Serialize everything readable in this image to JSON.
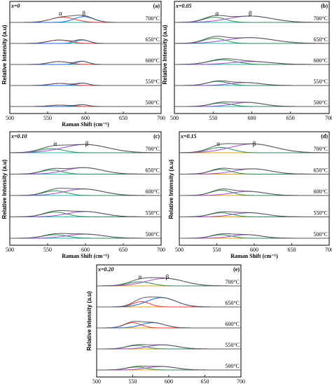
{
  "chart_data": [
    {
      "type": "line",
      "panel_letter": "(a)",
      "x_label": "x=0",
      "xlabel": "Raman Shift (cm⁻¹)",
      "ylabel": "Relative Intensity (a.u)",
      "xlim": [
        500,
        700
      ],
      "xticks": [
        "500",
        "550",
        "600",
        "650",
        "700"
      ],
      "phase_labels": [
        {
          "text": "α",
          "x": 567
        },
        {
          "text": "β",
          "x": 598
        }
      ],
      "baseline_color": "#2bb6b0",
      "temperatures": [
        "700°C",
        "650°C",
        "600°C",
        "550°C",
        "500°C"
      ],
      "peaks_by_temperature": [
        [
          {
            "center": 570,
            "height": 0.45,
            "width": 16,
            "color": "#e53935"
          },
          {
            "center": 598,
            "height": 0.5,
            "width": 13,
            "color": "#1e63d6"
          }
        ],
        [
          {
            "center": 565,
            "height": 0.3,
            "width": 14,
            "color": "#e53935"
          },
          {
            "center": 596,
            "height": 0.3,
            "width": 9,
            "color": "#1e63d6"
          }
        ],
        [
          {
            "center": 565,
            "height": 0.25,
            "width": 13,
            "color": "#e53935"
          },
          {
            "center": 596,
            "height": 0.27,
            "width": 8,
            "color": "#1e63d6"
          }
        ],
        [
          {
            "center": 566,
            "height": 0.18,
            "width": 13,
            "color": "#e53935"
          },
          {
            "center": 596,
            "height": 0.2,
            "width": 8,
            "color": "#1e63d6"
          }
        ],
        [
          {
            "center": 566,
            "height": 0.12,
            "width": 13,
            "color": "#e53935"
          },
          {
            "center": 596,
            "height": 0.15,
            "width": 8,
            "color": "#1e63d6"
          }
        ]
      ]
    },
    {
      "type": "line",
      "panel_letter": "(b)",
      "x_label": "x=0.05",
      "xlabel": "",
      "ylabel": "Relative Intensity (a.u)",
      "xlim": [
        500,
        700
      ],
      "xticks": [
        "500",
        "550",
        "600",
        "650",
        "700"
      ],
      "phase_labels": [
        {
          "text": "α",
          "x": 555
        },
        {
          "text": "β",
          "x": 598
        }
      ],
      "baseline_color": "#2bb6b0",
      "temperatures": [
        "700°C",
        "650°C",
        "600°C",
        "550°C",
        "500°C"
      ],
      "peaks_by_temperature": [
        [
          {
            "center": 552,
            "height": 0.45,
            "width": 14,
            "color": "#2e8b57"
          },
          {
            "center": 598,
            "height": 0.55,
            "width": 28,
            "color": "#9c4dcc"
          }
        ],
        [
          {
            "center": 552,
            "height": 0.45,
            "width": 14,
            "color": "#2e8b57"
          },
          {
            "center": 598,
            "height": 0.5,
            "width": 30,
            "color": "#9c4dcc"
          }
        ],
        [
          {
            "center": 562,
            "height": 0.4,
            "width": 18,
            "color": "#2e8b57"
          },
          {
            "center": 600,
            "height": 0.25,
            "width": 26,
            "color": "#9c4dcc"
          }
        ],
        [
          {
            "center": 556,
            "height": 0.35,
            "width": 14,
            "color": "#2e8b57"
          },
          {
            "center": 592,
            "height": 0.25,
            "width": 20,
            "color": "#9c4dcc"
          }
        ],
        [
          {
            "center": 560,
            "height": 0.3,
            "width": 14,
            "color": "#2e8b57"
          },
          {
            "center": 595,
            "height": 0.35,
            "width": 20,
            "color": "#9c4dcc"
          }
        ]
      ]
    },
    {
      "type": "line",
      "panel_letter": "(c)",
      "x_label": "x=0.10",
      "xlabel": "Raman Shift (cm⁻¹)",
      "ylabel": "Relative Intensity (a.u)",
      "xlim": [
        500,
        700
      ],
      "xticks": [
        "500",
        "550",
        "600",
        "650",
        "700"
      ],
      "phase_labels": [
        {
          "text": "α",
          "x": 560
        },
        {
          "text": "β",
          "x": 602
        }
      ],
      "baseline_color": "#2bb6b0",
      "temperatures": [
        "700°C",
        "650°C",
        "600°C",
        "550°C",
        "500°C"
      ],
      "peaks_by_temperature": [
        [
          {
            "center": 555,
            "height": 0.35,
            "width": 16,
            "color": "#2e8b57"
          },
          {
            "center": 600,
            "height": 0.7,
            "width": 30,
            "color": "#9c4dcc"
          }
        ],
        [
          {
            "center": 555,
            "height": 0.35,
            "width": 14,
            "color": "#2e8b57"
          },
          {
            "center": 598,
            "height": 0.55,
            "width": 24,
            "color": "#9c4dcc"
          }
        ],
        [
          {
            "center": 560,
            "height": 0.4,
            "width": 15,
            "color": "#2e8b57"
          },
          {
            "center": 598,
            "height": 0.55,
            "width": 25,
            "color": "#9c4dcc"
          }
        ],
        [
          {
            "center": 560,
            "height": 0.4,
            "width": 16,
            "color": "#2e8b57"
          },
          {
            "center": 600,
            "height": 0.45,
            "width": 24,
            "color": "#9c4dcc"
          }
        ],
        [
          {
            "center": 560,
            "height": 0.3,
            "width": 16,
            "color": "#2e8b57"
          },
          {
            "center": 600,
            "height": 0.35,
            "width": 24,
            "color": "#9c4dcc"
          }
        ]
      ]
    },
    {
      "type": "line",
      "panel_letter": "(d)",
      "x_label": "x=0.15",
      "xlabel": "Raman Shift (cm⁻¹)",
      "ylabel": "Relative Intensity (a.u)",
      "xlim": [
        500,
        700
      ],
      "xticks": [
        "500",
        "550",
        "600",
        "650",
        "700"
      ],
      "phase_labels": [
        {
          "text": "α",
          "x": 552
        },
        {
          "text": "β",
          "x": 600
        }
      ],
      "baseline_color": "#e0a020",
      "temperatures": [
        "700°C",
        "650°C",
        "600°C",
        "550°C",
        "500°C"
      ],
      "peaks_by_temperature": [
        [
          {
            "center": 555,
            "height": 0.45,
            "width": 16,
            "color": "#2e8b57"
          },
          {
            "center": 598,
            "height": 0.75,
            "width": 30,
            "color": "#9c4dcc"
          }
        ],
        [
          {
            "center": 555,
            "height": 0.4,
            "width": 14,
            "color": "#2e8b57"
          },
          {
            "center": 598,
            "height": 0.45,
            "width": 24,
            "color": "#9c4dcc"
          }
        ],
        [
          {
            "center": 556,
            "height": 0.45,
            "width": 14,
            "color": "#2e8b57"
          },
          {
            "center": 592,
            "height": 0.35,
            "width": 22,
            "color": "#9c4dcc"
          }
        ],
        [
          {
            "center": 556,
            "height": 0.35,
            "width": 15,
            "color": "#2e8b57"
          },
          {
            "center": 594,
            "height": 0.35,
            "width": 22,
            "color": "#9c4dcc"
          }
        ],
        [
          {
            "center": 556,
            "height": 0.3,
            "width": 14,
            "color": "#2e8b57"
          },
          {
            "center": 590,
            "height": 0.3,
            "width": 20,
            "color": "#9c4dcc"
          }
        ]
      ]
    },
    {
      "type": "line",
      "panel_letter": "(e)",
      "x_label": "x=0.20",
      "xlabel": "Raman Shift (cm⁻¹)",
      "ylabel": "Relative Intensity (a.u)",
      "xlim": [
        500,
        700
      ],
      "xticks": [
        "500",
        "550",
        "600",
        "650",
        "700"
      ],
      "phase_labels": [
        {
          "text": "α",
          "x": 560
        },
        {
          "text": "β",
          "x": 598
        }
      ],
      "baseline_color": "#e0a020",
      "temperatures": [
        "700°C",
        "650°C",
        "600°C",
        "550°C",
        "500°C"
      ],
      "peaks_by_temperature": [
        [
          {
            "center": 560,
            "height": 0.35,
            "width": 16,
            "color": "#2e8b57"
          },
          {
            "center": 595,
            "height": 0.65,
            "width": 26,
            "color": "#9c4dcc"
          }
        ],
        [
          {
            "center": 562,
            "height": 0.45,
            "width": 12,
            "color": "#e53935"
          },
          {
            "center": 590,
            "height": 0.8,
            "width": 20,
            "color": "#1e63d6"
          }
        ],
        [
          {
            "center": 550,
            "height": 0.45,
            "width": 12,
            "color": "#e53935"
          },
          {
            "center": 578,
            "height": 0.45,
            "width": 16,
            "color": "#1e63d6"
          }
        ],
        [
          {
            "center": 555,
            "height": 0.3,
            "width": 14,
            "color": "#2e8b57"
          },
          {
            "center": 592,
            "height": 0.35,
            "width": 20,
            "color": "#9c4dcc"
          }
        ],
        [
          {
            "center": 555,
            "height": 0.25,
            "width": 14,
            "color": "#2e8b57"
          },
          {
            "center": 590,
            "height": 0.3,
            "width": 20,
            "color": "#9c4dcc"
          }
        ]
      ]
    }
  ]
}
